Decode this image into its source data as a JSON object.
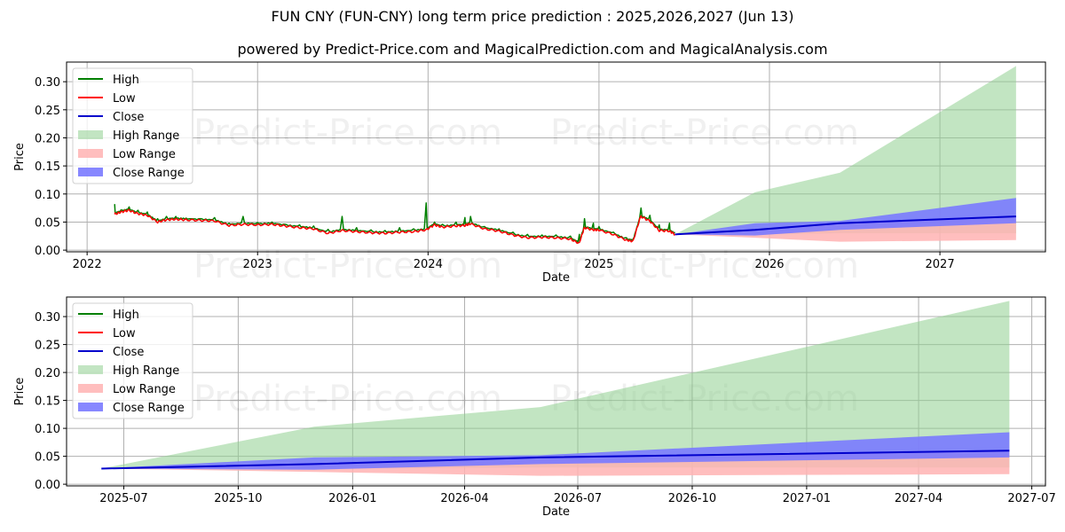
{
  "header": {
    "title": "FUN CNY (FUN-CNY) long term price prediction : 2025,2026,2027 (Jun 13)",
    "subtitle": "powered by Predict-Price.com and MagicalPrediction.com and MagicalAnalysis.com"
  },
  "watermark": "Predict-Price.com",
  "colors": {
    "high": "#008000",
    "low": "#ff0000",
    "close": "#0000cc",
    "high_range": "#8fcf8f",
    "low_range": "#ffb3b3",
    "close_range": "#7a7aff",
    "grid": "#b0b0b0"
  },
  "legend": [
    "High",
    "Low",
    "Close",
    "High Range",
    "Low Range",
    "Close Range"
  ],
  "chart_data": [
    {
      "type": "line",
      "title": "Long-term history and forecast",
      "xlabel": "Date",
      "ylabel": "Price",
      "ylim": [
        -0.003,
        0.335
      ],
      "xlim": [
        "2021-11-18",
        "2027-08-15"
      ],
      "xticks": [
        "2022",
        "2023",
        "2024",
        "2025",
        "2026",
        "2027"
      ],
      "yticks": [
        "0.00",
        "0.05",
        "0.10",
        "0.15",
        "0.20",
        "0.25",
        "0.30"
      ],
      "grid": true,
      "legend_position": "upper left",
      "history": {
        "x": [
          "2022-03-01",
          "2022-03-15",
          "2022-04-01",
          "2022-04-20",
          "2022-05-10",
          "2022-06-01",
          "2022-06-20",
          "2022-07-10",
          "2022-08-01",
          "2022-09-01",
          "2022-10-01",
          "2022-11-01",
          "2022-12-01",
          "2023-01-01",
          "2023-02-01",
          "2023-03-01",
          "2023-04-01",
          "2023-05-01",
          "2023-06-01",
          "2023-07-01",
          "2023-08-01",
          "2023-09-01",
          "2023-10-01",
          "2023-11-01",
          "2023-12-01",
          "2023-12-28",
          "2024-01-15",
          "2024-02-01",
          "2024-03-01",
          "2024-03-20",
          "2024-04-01",
          "2024-05-01",
          "2024-06-01",
          "2024-07-01",
          "2024-08-01",
          "2024-09-01",
          "2024-10-01",
          "2024-11-01",
          "2024-11-20",
          "2024-12-01",
          "2024-12-20",
          "2025-01-01",
          "2025-02-01",
          "2025-03-01",
          "2025-03-15",
          "2025-04-01",
          "2025-04-20",
          "2025-05-10",
          "2025-06-01",
          "2025-06-13"
        ],
        "high": [
          0.082,
          0.072,
          0.077,
          0.071,
          0.068,
          0.056,
          0.06,
          0.06,
          0.057,
          0.056,
          0.058,
          0.048,
          0.06,
          0.049,
          0.05,
          0.046,
          0.045,
          0.043,
          0.037,
          0.06,
          0.04,
          0.036,
          0.035,
          0.04,
          0.038,
          0.084,
          0.05,
          0.046,
          0.05,
          0.058,
          0.06,
          0.042,
          0.038,
          0.032,
          0.028,
          0.027,
          0.027,
          0.025,
          0.028,
          0.056,
          0.048,
          0.042,
          0.032,
          0.022,
          0.02,
          0.075,
          0.062,
          0.045,
          0.048,
          0.031
        ],
        "low": [
          0.064,
          0.068,
          0.071,
          0.065,
          0.062,
          0.05,
          0.054,
          0.055,
          0.054,
          0.053,
          0.052,
          0.044,
          0.046,
          0.045,
          0.046,
          0.043,
          0.04,
          0.038,
          0.03,
          0.035,
          0.033,
          0.031,
          0.03,
          0.032,
          0.033,
          0.036,
          0.045,
          0.041,
          0.043,
          0.044,
          0.047,
          0.038,
          0.034,
          0.027,
          0.022,
          0.023,
          0.022,
          0.02,
          0.012,
          0.04,
          0.036,
          0.036,
          0.028,
          0.018,
          0.016,
          0.06,
          0.052,
          0.035,
          0.034,
          0.028
        ]
      },
      "forecast": {
        "x": [
          "2025-06-13",
          "2025-12-01",
          "2026-06-01",
          "2027-06-13"
        ],
        "close": [
          0.028,
          0.036,
          0.048,
          0.06
        ],
        "high_range_upper": [
          0.028,
          0.103,
          0.138,
          0.328
        ],
        "high_range_lower": [
          0.028,
          0.028,
          0.03,
          0.03
        ],
        "close_range_upper": [
          0.028,
          0.048,
          0.052,
          0.093
        ],
        "close_range_lower": [
          0.028,
          0.026,
          0.036,
          0.048
        ],
        "low_range_upper": [
          0.028,
          0.036,
          0.048,
          0.06
        ],
        "low_range_lower": [
          0.028,
          0.022,
          0.015,
          0.018
        ]
      }
    },
    {
      "type": "line",
      "title": "Forecast detail",
      "xlabel": "Date",
      "ylabel": "Price",
      "ylim": [
        -0.003,
        0.335
      ],
      "xlim": [
        "2025-05-16",
        "2027-07-12"
      ],
      "xticks": [
        "2025-07",
        "2025-10",
        "2026-01",
        "2026-04",
        "2026-07",
        "2026-10",
        "2027-01",
        "2027-04",
        "2027-07"
      ],
      "yticks": [
        "0.00",
        "0.05",
        "0.10",
        "0.15",
        "0.20",
        "0.25",
        "0.30"
      ],
      "grid": true,
      "legend_position": "upper left",
      "forecast": {
        "x": [
          "2025-06-13",
          "2025-12-01",
          "2026-06-01",
          "2027-06-13"
        ],
        "close": [
          0.028,
          0.036,
          0.048,
          0.06
        ],
        "high_range_upper": [
          0.028,
          0.103,
          0.138,
          0.328
        ],
        "high_range_lower": [
          0.028,
          0.028,
          0.03,
          0.03
        ],
        "close_range_upper": [
          0.028,
          0.048,
          0.052,
          0.093
        ],
        "close_range_lower": [
          0.028,
          0.026,
          0.036,
          0.048
        ],
        "low_range_upper": [
          0.028,
          0.036,
          0.048,
          0.06
        ],
        "low_range_lower": [
          0.028,
          0.022,
          0.015,
          0.018
        ]
      }
    }
  ]
}
